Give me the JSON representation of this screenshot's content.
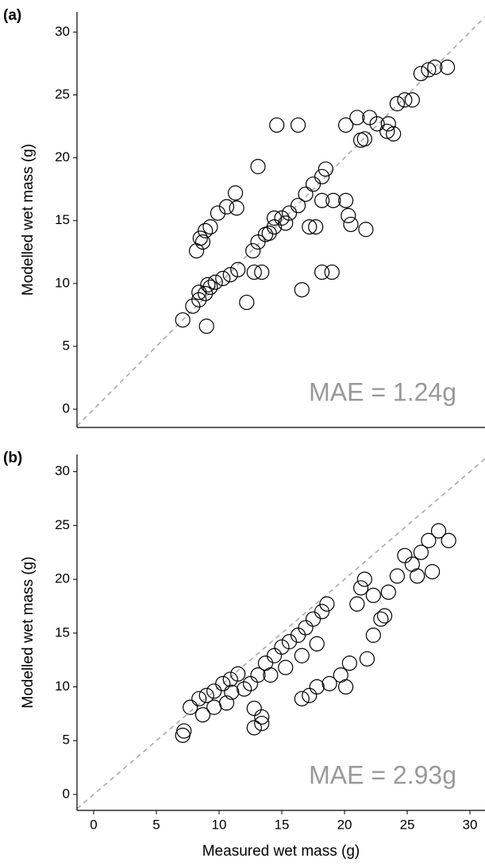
{
  "chart_data": [
    {
      "type": "scatter",
      "panel_label": "(a)",
      "y_label": "Modelled wet mass (g)",
      "annotation": "MAE = 1.24g",
      "xlim": [
        -1.33,
        31.2
      ],
      "ylim": [
        -1.45,
        31.6
      ],
      "yticks": [
        0,
        5,
        10,
        15,
        20,
        25,
        30
      ],
      "color": "#000000",
      "x": [
        7.1,
        9.0,
        7.9,
        8.4,
        8.9,
        9.3,
        9.7,
        10.3,
        10.9,
        11.5,
        8.4,
        9.1,
        8.2,
        8.5,
        8.9,
        9.3,
        9.9,
        10.6,
        11.4,
        11.3,
        8.7,
        12.2,
        12.7,
        13.1,
        13.7,
        14.4,
        15.0,
        15.6,
        16.3,
        16.9,
        17.5,
        18.2,
        18.5,
        13.1,
        12.8,
        13.4,
        14.6,
        16.3,
        16.6,
        18.2,
        19.0,
        17.2,
        17.7,
        18.2,
        19.1,
        20.1,
        20.3,
        20.5,
        21.7,
        20.1,
        21.0,
        22.0,
        21.3,
        21.6,
        22.6,
        23.5,
        23.4,
        23.9,
        24.2,
        24.8,
        25.4,
        26.1,
        26.7,
        27.2,
        28.2,
        14.4,
        14.0,
        15.3
      ],
      "values": [
        7.1,
        6.6,
        8.2,
        8.7,
        9.2,
        9.7,
        10.1,
        10.4,
        10.7,
        11.1,
        9.3,
        9.9,
        12.6,
        13.6,
        14.2,
        14.5,
        15.6,
        16.1,
        16.0,
        17.2,
        13.3,
        8.5,
        12.6,
        13.3,
        13.9,
        14.5,
        15.2,
        15.6,
        16.2,
        17.1,
        17.9,
        18.5,
        19.1,
        19.3,
        10.9,
        10.9,
        22.6,
        22.6,
        9.5,
        10.9,
        10.9,
        14.5,
        14.5,
        16.6,
        16.6,
        16.6,
        15.4,
        14.7,
        14.3,
        22.6,
        23.2,
        23.2,
        21.4,
        21.5,
        22.7,
        22.7,
        22.1,
        21.9,
        24.3,
        24.6,
        24.6,
        26.7,
        27.0,
        27.2,
        27.2,
        15.2,
        14.0,
        14.8
      ]
    },
    {
      "type": "scatter",
      "panel_label": "(b)",
      "y_label": "Modelled wet mass (g)",
      "x_label": "Measured wet mass (g)",
      "annotation": "MAE = 2.93g",
      "xlim": [
        -1.33,
        31.2
      ],
      "ylim": [
        -1.48,
        31.6
      ],
      "xticks": [
        0,
        5,
        10,
        15,
        20,
        25,
        30
      ],
      "yticks": [
        0,
        5,
        10,
        15,
        20,
        25,
        30
      ],
      "color": "#000000",
      "x": [
        7.1,
        7.2,
        7.7,
        8.4,
        9.0,
        9.6,
        10.3,
        10.9,
        11.5,
        8.7,
        9.6,
        10.6,
        12.8,
        13.4,
        12.8,
        13.4,
        12.5,
        13.1,
        13.7,
        14.4,
        15.0,
        15.6,
        16.3,
        16.9,
        17.5,
        18.2,
        18.6,
        14.1,
        15.3,
        16.6,
        17.8,
        16.6,
        17.2,
        17.8,
        18.8,
        19.7,
        20.4,
        20.1,
        21.0,
        21.3,
        21.6,
        22.3,
        22.9,
        21.8,
        22.3,
        23.5,
        24.2,
        24.8,
        25.4,
        26.1,
        26.7,
        27.5,
        28.3,
        27.0,
        25.8,
        23.2,
        11.0,
        12.0
      ],
      "values": [
        5.5,
        5.9,
        8.1,
        8.9,
        9.2,
        9.6,
        10.3,
        10.7,
        11.2,
        7.4,
        8.1,
        8.5,
        6.2,
        6.6,
        8.0,
        7.2,
        10.3,
        11.1,
        12.2,
        12.9,
        13.7,
        14.2,
        14.8,
        15.5,
        16.3,
        17.0,
        17.7,
        11.1,
        11.8,
        12.9,
        14.0,
        8.9,
        9.2,
        10.0,
        10.3,
        11.1,
        12.2,
        10.0,
        17.7,
        19.2,
        20.0,
        18.5,
        16.3,
        12.6,
        14.8,
        18.8,
        20.3,
        22.2,
        21.4,
        22.5,
        23.6,
        24.5,
        23.6,
        20.7,
        20.3,
        16.6,
        9.5,
        9.8
      ]
    }
  ]
}
